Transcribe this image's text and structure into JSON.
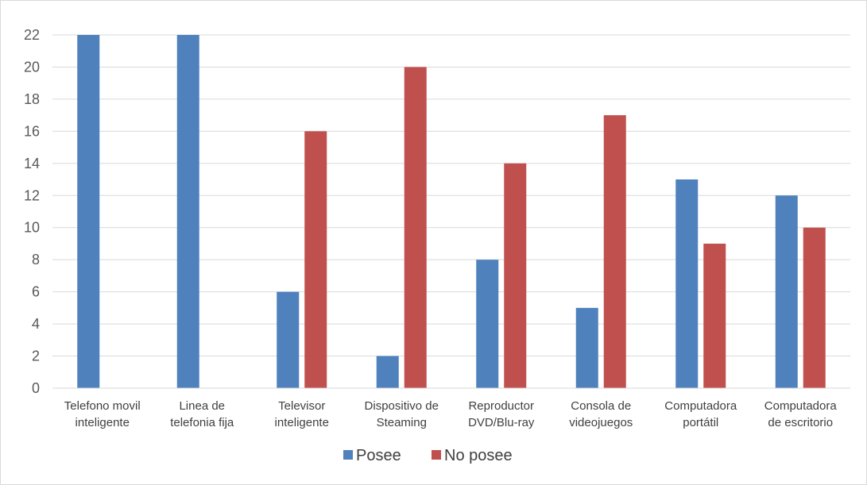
{
  "chart_data": {
    "type": "bar",
    "title": "",
    "xlabel": "",
    "ylabel": "",
    "ylim": [
      0,
      22
    ],
    "yticks": [
      0,
      2,
      4,
      6,
      8,
      10,
      12,
      14,
      16,
      18,
      20,
      22
    ],
    "grid": true,
    "legend_position": "bottom",
    "categories": [
      [
        "Telefono movil",
        "inteligente"
      ],
      [
        "Linea de",
        "telefonia fija"
      ],
      [
        "Televisor",
        "inteligente"
      ],
      [
        "Dispositivo de",
        "Steaming"
      ],
      [
        "Reproductor",
        "DVD/Blu-ray"
      ],
      [
        "Consola de",
        "videojuegos"
      ],
      [
        "Computadora",
        "portátil"
      ],
      [
        "Computadora",
        "de escritorio"
      ]
    ],
    "series": [
      {
        "name": "Posee",
        "color": "#4f81bd",
        "values": [
          22,
          22,
          6,
          2,
          8,
          5,
          13,
          12
        ]
      },
      {
        "name": "No posee",
        "color": "#c0504d",
        "values": [
          0,
          0,
          16,
          20,
          14,
          17,
          9,
          10
        ]
      }
    ]
  }
}
